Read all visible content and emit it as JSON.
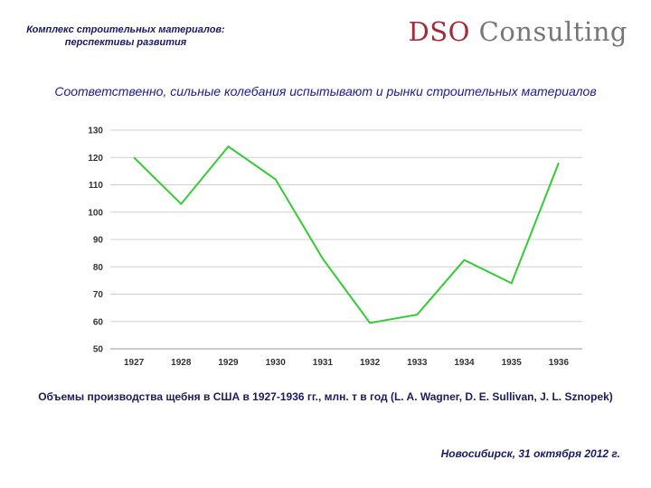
{
  "header": {
    "subtitle_line1": "Комплекс строительных материалов:",
    "subtitle_line2": "перспективы развития",
    "logo_part1": "DSO",
    "logo_part2": "Consulting"
  },
  "slide_title": "Соответственно, сильные колебания испытывают и рынки строительных материалов",
  "chart_data": {
    "type": "line",
    "categories": [
      "1927",
      "1928",
      "1929",
      "1930",
      "1931",
      "1932",
      "1933",
      "1934",
      "1935",
      "1936"
    ],
    "values": [
      120,
      103,
      124,
      112,
      83,
      59.5,
      62.5,
      82.5,
      74,
      118
    ],
    "ylim": [
      50,
      130
    ],
    "yticks": [
      50,
      60,
      70,
      80,
      90,
      100,
      110,
      120,
      130
    ],
    "grid": true,
    "legend": "none",
    "line_color": "#33cc33"
  },
  "caption": "Объемы производства щебня в США в 1927-1936 гг., млн. т в год (L. A. Wagner, D. E. Sullivan, J. L. Sznopek)",
  "footer": {
    "date": "Новосибирск, 31 октября 2012 г."
  }
}
